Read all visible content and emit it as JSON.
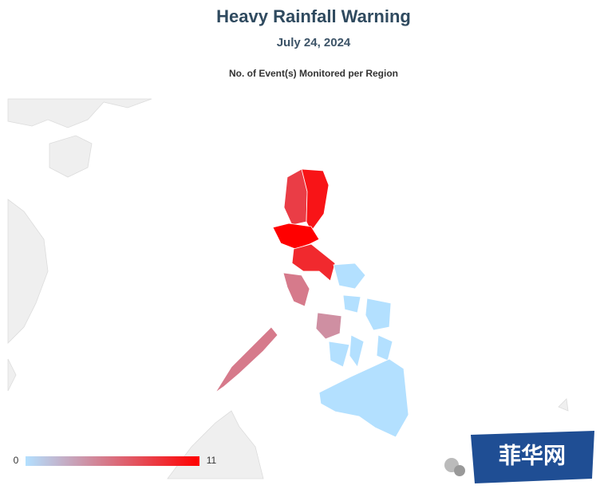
{
  "header": {
    "title": "Heavy Rainfall Warning",
    "subtitle": "July 24, 2024",
    "map_title": "No. of Event(s) Monitored per Region"
  },
  "legend": {
    "min": 0,
    "max": 11,
    "low_color": "#b3e0ff",
    "high_color": "#ff0000"
  },
  "region_values": [
    8,
    10,
    11,
    9,
    5,
    5,
    4,
    0,
    0,
    0,
    0,
    0,
    0,
    0
  ],
  "watermark": {
    "text": "菲华网"
  }
}
